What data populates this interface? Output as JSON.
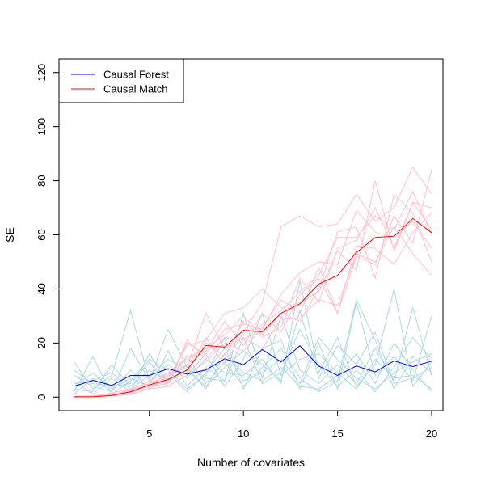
{
  "chart_data": {
    "type": "line",
    "xlabel": "Number of covariates",
    "ylabel": "SE",
    "xlim": [
      0.2,
      20.6
    ],
    "ylim": [
      -5,
      125
    ],
    "x_ticks": [
      5,
      10,
      15,
      20
    ],
    "y_ticks": [
      0,
      20,
      40,
      60,
      80,
      100,
      120
    ],
    "x": [
      1,
      2,
      3,
      4,
      5,
      6,
      7,
      8,
      9,
      10,
      11,
      12,
      13,
      14,
      15,
      16,
      17,
      18,
      19,
      20
    ],
    "legend_position": "top-left",
    "series": [
      {
        "name": "Causal Forest",
        "color": "#0000ff",
        "values": [
          4,
          6.2,
          4.3,
          8,
          8,
          10.5,
          8.5,
          10,
          14.2,
          12,
          17.6,
          13,
          19,
          11.5,
          8,
          11.5,
          9.3,
          13.4,
          11.3,
          13.3
        ]
      },
      {
        "name": "Causal Match",
        "color": "#ff0000",
        "values": [
          0.1,
          0.1,
          0.6,
          2,
          4.5,
          6.5,
          10,
          19.1,
          18.5,
          24.7,
          24.2,
          31,
          34.5,
          41.8,
          45,
          53.5,
          59,
          59.5,
          66,
          60.8
        ]
      }
    ],
    "background_series": [
      {
        "group": "Causal Forest",
        "color": "#add8e6",
        "values": [
          13,
          3,
          8,
          32,
          6,
          25,
          11,
          3,
          16,
          9,
          6,
          11,
          4,
          3,
          8,
          16,
          5,
          20,
          10,
          2
        ]
      },
      {
        "group": "Causal Forest",
        "color": "#add8e6",
        "values": [
          2,
          15,
          1,
          6,
          14,
          10,
          3,
          8,
          22,
          3,
          18,
          21,
          3,
          20,
          3,
          35,
          8,
          15,
          6,
          30
        ]
      },
      {
        "group": "Causal Forest",
        "color": "#add8e6",
        "values": [
          6,
          1,
          7,
          2,
          16,
          5,
          12,
          7,
          6,
          31,
          7,
          30,
          10,
          5,
          12,
          5,
          18,
          6,
          33,
          8
        ]
      },
      {
        "group": "Causal Forest",
        "color": "#add8e6",
        "values": [
          1,
          7,
          2,
          18,
          6,
          12,
          7,
          14,
          9,
          8,
          14,
          5,
          43,
          9,
          22,
          4,
          12,
          40,
          4,
          13
        ]
      },
      {
        "group": "Causal Forest",
        "color": "#add8e6",
        "values": [
          3,
          2,
          12,
          4,
          10,
          6,
          15,
          5,
          13,
          4,
          11,
          18,
          7,
          2,
          6,
          36,
          21,
          3,
          15,
          9
        ]
      },
      {
        "group": "Causal Forest",
        "color": "#add8e6",
        "values": [
          8,
          4,
          2,
          10,
          3,
          17,
          4,
          11,
          6,
          22,
          5,
          9,
          25,
          12,
          4,
          10,
          2,
          11,
          22,
          14
        ]
      },
      {
        "group": "Causal Forest",
        "color": "#add8e6",
        "values": [
          10,
          5,
          4,
          5,
          13,
          4,
          8,
          16,
          4,
          14,
          31,
          8,
          14,
          16,
          9,
          3,
          14,
          7,
          8,
          3
        ]
      },
      {
        "group": "Causal Forest",
        "color": "#add8e6",
        "values": [
          4,
          9,
          3,
          7,
          4,
          9,
          2,
          9,
          18,
          6,
          9,
          14,
          5,
          22,
          14,
          7,
          3,
          9,
          13,
          16
        ]
      },
      {
        "group": "Causal Forest",
        "color": "#add8e6",
        "values": [
          5,
          6,
          9,
          3,
          8,
          14,
          10,
          4,
          11,
          17,
          12,
          6,
          32,
          7,
          19,
          12,
          24,
          5,
          7,
          11
        ]
      },
      {
        "group": "Causal Match",
        "color": "#ffc0cb",
        "values": [
          0.3,
          0.5,
          1.5,
          3,
          5,
          8,
          12,
          20,
          15,
          28,
          22,
          26,
          44,
          35,
          55,
          58,
          70,
          55,
          72,
          70
        ]
      },
      {
        "group": "Causal Match",
        "color": "#ffc0cb",
        "values": [
          0.1,
          0.2,
          0.5,
          1,
          3,
          4,
          8,
          13,
          20,
          17,
          26,
          36,
          31,
          48,
          31,
          52,
          49,
          67,
          57,
          84
        ]
      },
      {
        "group": "Causal Match",
        "color": "#ffc0cb",
        "values": [
          0.2,
          0.4,
          1,
          2,
          4,
          6,
          9,
          22,
          12,
          24,
          35,
          63,
          67,
          63,
          64,
          75,
          65,
          70,
          85,
          75
        ]
      },
      {
        "group": "Causal Match",
        "color": "#ffc0cb",
        "values": [
          0.1,
          0.1,
          0.8,
          2.5,
          6,
          5,
          21,
          14,
          22,
          21,
          27,
          32,
          39,
          45,
          59,
          59,
          67,
          62,
          76,
          60
        ]
      },
      {
        "group": "Causal Match",
        "color": "#ffc0cb",
        "values": [
          0.1,
          0.3,
          0.6,
          1.5,
          5,
          8,
          11,
          31,
          18,
          22,
          18,
          29,
          29,
          36,
          34,
          53,
          50,
          63,
          53,
          45
        ]
      },
      {
        "group": "Causal Match",
        "color": "#ffc0cb",
        "values": [
          0.1,
          0.2,
          0.4,
          2,
          3,
          8,
          15,
          17,
          28,
          19,
          31,
          24,
          38,
          44,
          31,
          56,
          55,
          49,
          61,
          68
        ]
      },
      {
        "group": "Causal Match",
        "color": "#ffc0cb",
        "values": [
          0.1,
          0.1,
          0.7,
          3,
          4,
          5,
          20,
          16,
          25,
          27,
          25,
          38,
          46,
          50,
          49,
          69,
          61,
          59,
          65,
          55
        ]
      },
      {
        "group": "Causal Match",
        "color": "#ffc0cb",
        "values": [
          0.1,
          0.3,
          0.5,
          1,
          5,
          7,
          19,
          21,
          31,
          33,
          40,
          33,
          35,
          39,
          54,
          47,
          80,
          54,
          72,
          62
        ]
      },
      {
        "group": "Causal Match",
        "color": "#ffc0cb",
        "values": [
          0.1,
          0.2,
          1,
          2,
          6,
          9,
          14,
          18,
          23,
          30,
          23,
          31,
          28,
          40,
          61,
          63,
          44,
          75,
          68,
          50
        ]
      }
    ]
  }
}
